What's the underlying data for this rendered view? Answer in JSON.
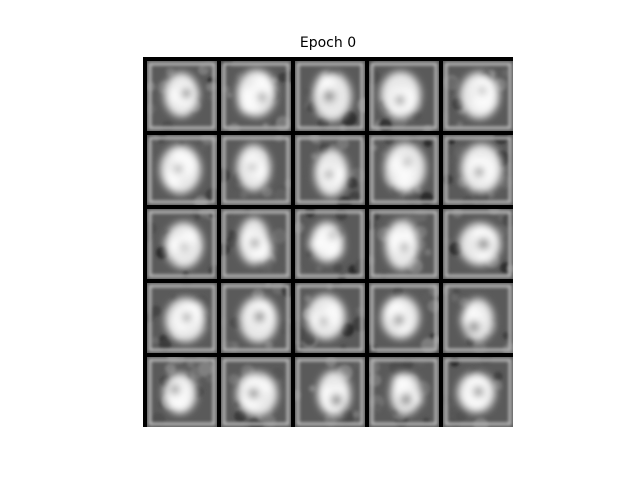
{
  "title": "Epoch 0"
}
